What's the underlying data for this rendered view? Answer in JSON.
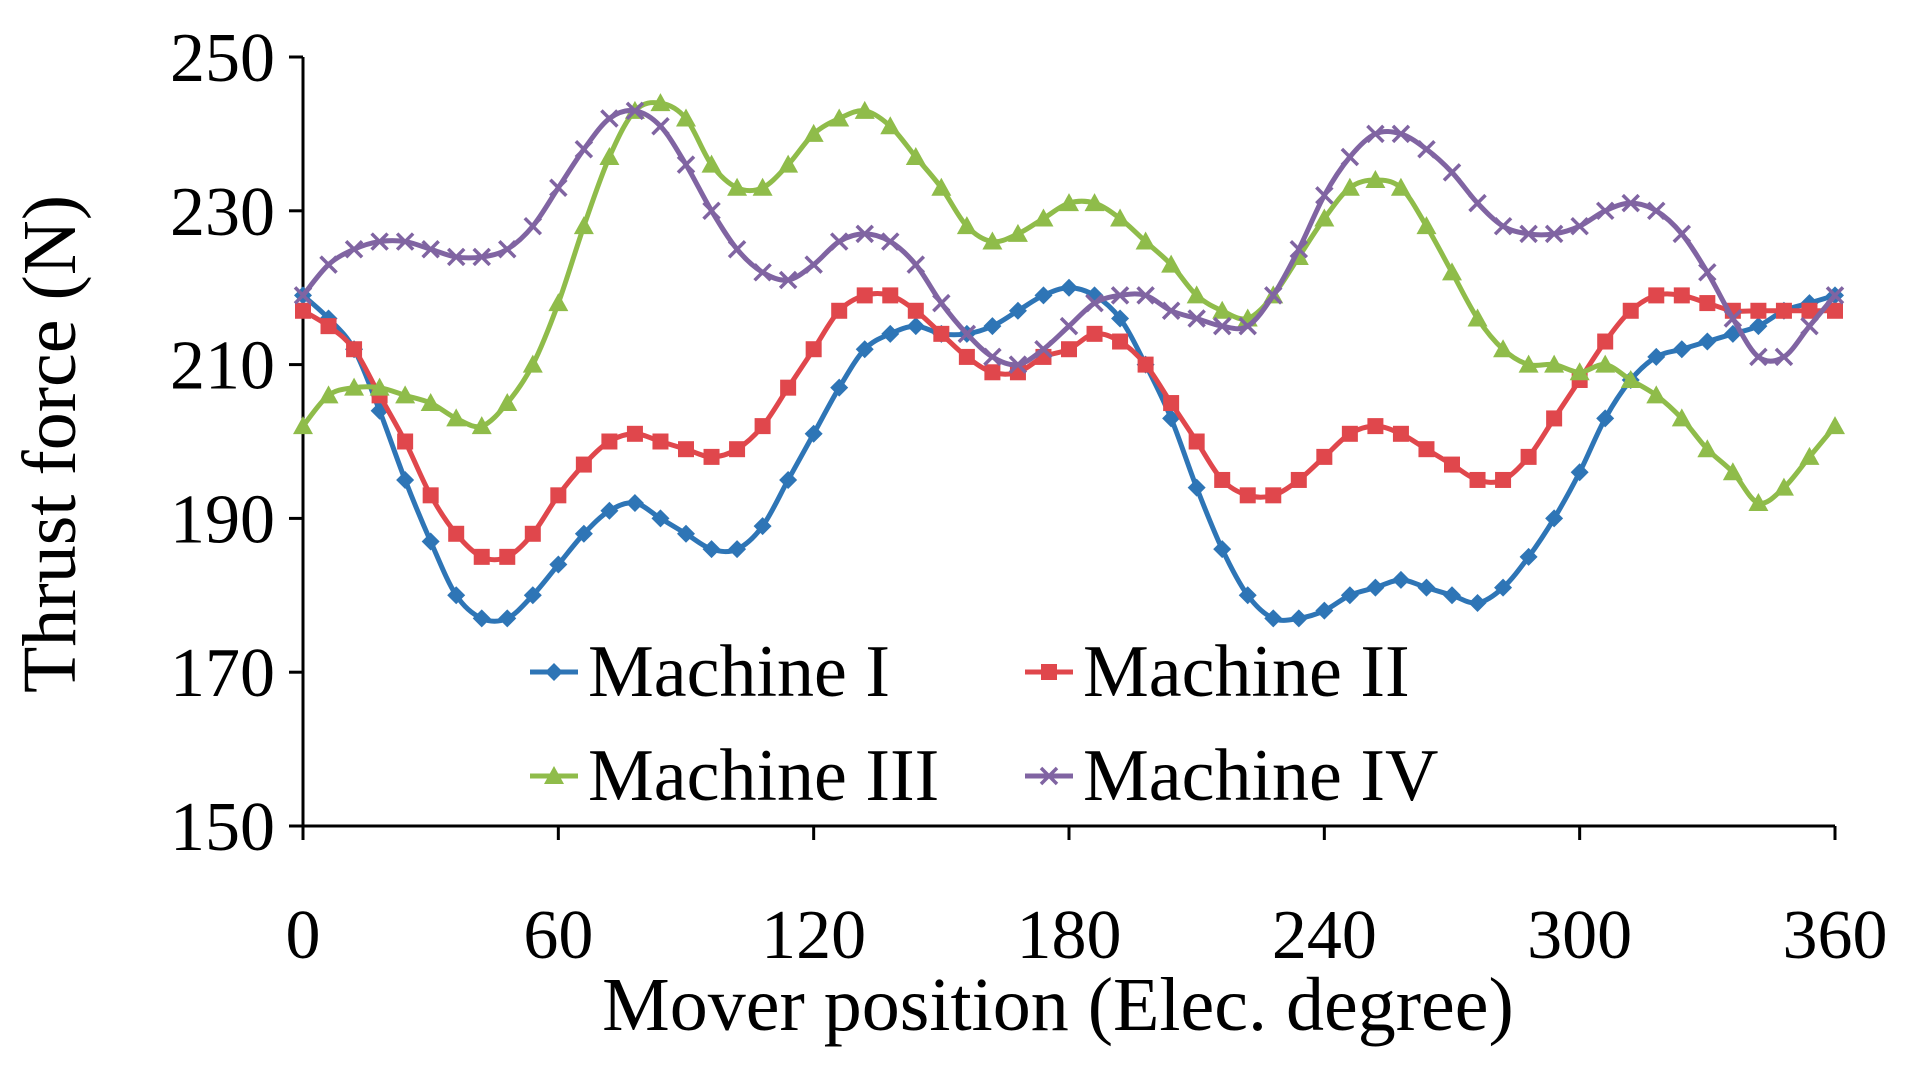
{
  "chart_data": {
    "type": "line",
    "xlabel": "Mover position (Elec. degree)",
    "ylabel": "Thrust force (N)",
    "xlim": [
      0,
      360
    ],
    "ylim": [
      150,
      250
    ],
    "xticks": [
      "0",
      "60",
      "120",
      "180",
      "240",
      "300",
      "360"
    ],
    "yticks": [
      "150",
      "170",
      "190",
      "210",
      "230",
      "250"
    ],
    "grid": false,
    "legend_position": "inside-bottom-center",
    "x": [
      0,
      6,
      12,
      18,
      24,
      30,
      36,
      42,
      48,
      54,
      60,
      66,
      72,
      78,
      84,
      90,
      96,
      102,
      108,
      114,
      120,
      126,
      132,
      138,
      144,
      150,
      156,
      162,
      168,
      174,
      180,
      186,
      192,
      198,
      204,
      210,
      216,
      222,
      228,
      234,
      240,
      246,
      252,
      258,
      264,
      270,
      276,
      282,
      288,
      294,
      300,
      306,
      312,
      318,
      324,
      330,
      336,
      342,
      348,
      354,
      360
    ],
    "series": [
      {
        "name": "Machine I",
        "color": "#2E75B6",
        "marker": "diamond",
        "values": [
          219,
          216,
          212,
          204,
          195,
          187,
          180,
          177,
          177,
          180,
          184,
          188,
          191,
          192,
          190,
          188,
          186,
          186,
          189,
          195,
          201,
          207,
          212,
          214,
          215,
          214,
          214,
          215,
          217,
          219,
          220,
          219,
          216,
          210,
          203,
          194,
          186,
          180,
          177,
          177,
          178,
          180,
          181,
          182,
          181,
          180,
          179,
          181,
          185,
          190,
          196,
          203,
          208,
          211,
          212,
          213,
          214,
          215,
          217,
          218,
          219
        ]
      },
      {
        "name": "Machine II",
        "color": "#E0474C",
        "marker": "square",
        "values": [
          217,
          215,
          212,
          206,
          200,
          193,
          188,
          185,
          185,
          188,
          193,
          197,
          200,
          201,
          200,
          199,
          198,
          199,
          202,
          207,
          212,
          217,
          219,
          219,
          217,
          214,
          211,
          209,
          209,
          211,
          212,
          214,
          213,
          210,
          205,
          200,
          195,
          193,
          193,
          195,
          198,
          201,
          202,
          201,
          199,
          197,
          195,
          195,
          198,
          203,
          208,
          213,
          217,
          219,
          219,
          218,
          217,
          217,
          217,
          217,
          217
        ]
      },
      {
        "name": "Machine III",
        "color": "#8FBC4A",
        "marker": "triangle",
        "values": [
          202,
          206,
          207,
          207,
          206,
          205,
          203,
          202,
          205,
          210,
          218,
          228,
          237,
          243,
          244,
          242,
          236,
          233,
          233,
          236,
          240,
          242,
          243,
          241,
          237,
          233,
          228,
          226,
          227,
          229,
          231,
          231,
          229,
          226,
          223,
          219,
          217,
          216,
          219,
          224,
          229,
          233,
          234,
          233,
          228,
          222,
          216,
          212,
          210,
          210,
          209,
          210,
          208,
          206,
          203,
          199,
          196,
          192,
          194,
          198,
          202
        ]
      },
      {
        "name": "Machine IV",
        "color": "#8064A2",
        "marker": "x",
        "values": [
          219,
          223,
          225,
          226,
          226,
          225,
          224,
          224,
          225,
          228,
          233,
          238,
          242,
          243,
          241,
          236,
          230,
          225,
          222,
          221,
          223,
          226,
          227,
          226,
          223,
          218,
          214,
          211,
          210,
          212,
          215,
          218,
          219,
          219,
          217,
          216,
          215,
          215,
          219,
          225,
          232,
          237,
          240,
          240,
          238,
          235,
          231,
          228,
          227,
          227,
          228,
          230,
          231,
          230,
          227,
          222,
          216,
          211,
          211,
          215,
          219
        ]
      }
    ]
  }
}
